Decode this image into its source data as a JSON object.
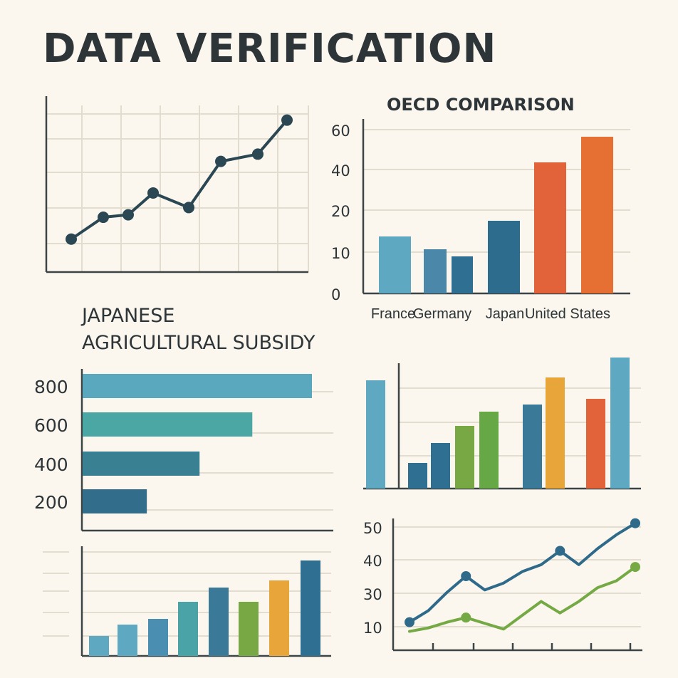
{
  "page": {
    "title": "DATA VERIFICATION"
  },
  "colors": {
    "ink": "#2e3538",
    "navy": "#2f5f7e",
    "teal": "#4aa3a6",
    "lightblue": "#5fa8c1",
    "midblue": "#3a7a98",
    "green": "#78a844",
    "yellow": "#e8a63a",
    "orange": "#e2633a",
    "orange2": "#e67034",
    "grid": "#e3ddd0",
    "axis": "#3d4446"
  },
  "chart_data": [
    {
      "id": "trend",
      "type": "line",
      "title": "",
      "x": [
        1,
        2,
        3,
        4,
        5,
        6,
        7,
        8
      ],
      "series": [
        {
          "values": [
            8,
            17,
            18,
            27,
            21,
            40,
            43,
            57
          ]
        }
      ],
      "ylim": [
        0,
        66
      ],
      "grid": true
    },
    {
      "id": "oecd",
      "type": "bar",
      "title": "OECD COMPARISON",
      "categories": [
        "France",
        "Germany",
        "Japan",
        "United States"
      ],
      "tick_labels": [
        "60",
        "40",
        "20",
        "10",
        "0"
      ],
      "bars": [
        {
          "category": "France",
          "value": 20,
          "color": "#5fa8c1"
        },
        {
          "category": "Germany",
          "value": 15.5,
          "color": "#4a87a8"
        },
        {
          "category": "Germany",
          "value": 13,
          "color": "#2f6f92"
        },
        {
          "category": "Japan",
          "value": 25.5,
          "color": "#2e6c8e"
        },
        {
          "category": "United States",
          "value": 46,
          "color": "#e2633a"
        },
        {
          "category": "United States",
          "value": 55,
          "color": "#e67034"
        }
      ],
      "grid": true
    },
    {
      "id": "subsidy",
      "type": "bar",
      "orientation": "horizontal",
      "title": "JAPANESE AGRICULTURAL SUBSIDY",
      "title_lines": [
        "JAPANESE",
        "AGRICULTURAL SUBSIDY"
      ],
      "categories": [
        "800",
        "600",
        "400",
        "200"
      ],
      "values": [
        100,
        74,
        51,
        28
      ],
      "colors": [
        "#5aa8bd",
        "#4aa7a4",
        "#3a8093",
        "#326d8c"
      ],
      "grid": true
    },
    {
      "id": "bottom-bars",
      "type": "bar",
      "title": "",
      "values": [
        14,
        22,
        26,
        38,
        48,
        38,
        53,
        67
      ],
      "colors": [
        "#5fa8c1",
        "#5fa8c1",
        "#4a8fb1",
        "#4aa3a6",
        "#3a7a98",
        "#78a844",
        "#e8a63a",
        "#2f6f92"
      ],
      "ylim": [
        0,
        100
      ],
      "grid": true
    },
    {
      "id": "mid-bars",
      "type": "bar",
      "title": "",
      "values": [
        76,
        18,
        32,
        44,
        54,
        59,
        78,
        63,
        92
      ],
      "colors": [
        "#5fa8c1",
        "#2f6f92",
        "#2f6f92",
        "#78a844",
        "#66a845",
        "#3a7a98",
        "#e8a63a",
        "#e2633a",
        "#5fa8c1"
      ],
      "grid": true
    },
    {
      "id": "two-lines",
      "type": "line",
      "title": "",
      "tick_labels": [
        "50",
        "40",
        "30",
        "10"
      ],
      "x": [
        0,
        1,
        2,
        3,
        4,
        5,
        6,
        7,
        8,
        9,
        10,
        11,
        12
      ],
      "series": [
        {
          "color": "#2f6a8a",
          "values": [
            4,
            9,
            17,
            24,
            18,
            21,
            26,
            29,
            35,
            29,
            36,
            42,
            47
          ]
        },
        {
          "color": "#74a944",
          "values": [
            0,
            1.5,
            4,
            6,
            3.5,
            1,
            7,
            13,
            8,
            13,
            19,
            22,
            28
          ]
        }
      ],
      "markers": [
        [
          0,
          0
        ],
        [
          3,
          0
        ],
        [
          8,
          0
        ],
        [
          12,
          0
        ],
        [
          3,
          1
        ],
        [
          12,
          1
        ]
      ],
      "ylim": [
        -2,
        50
      ],
      "grid": true
    }
  ]
}
